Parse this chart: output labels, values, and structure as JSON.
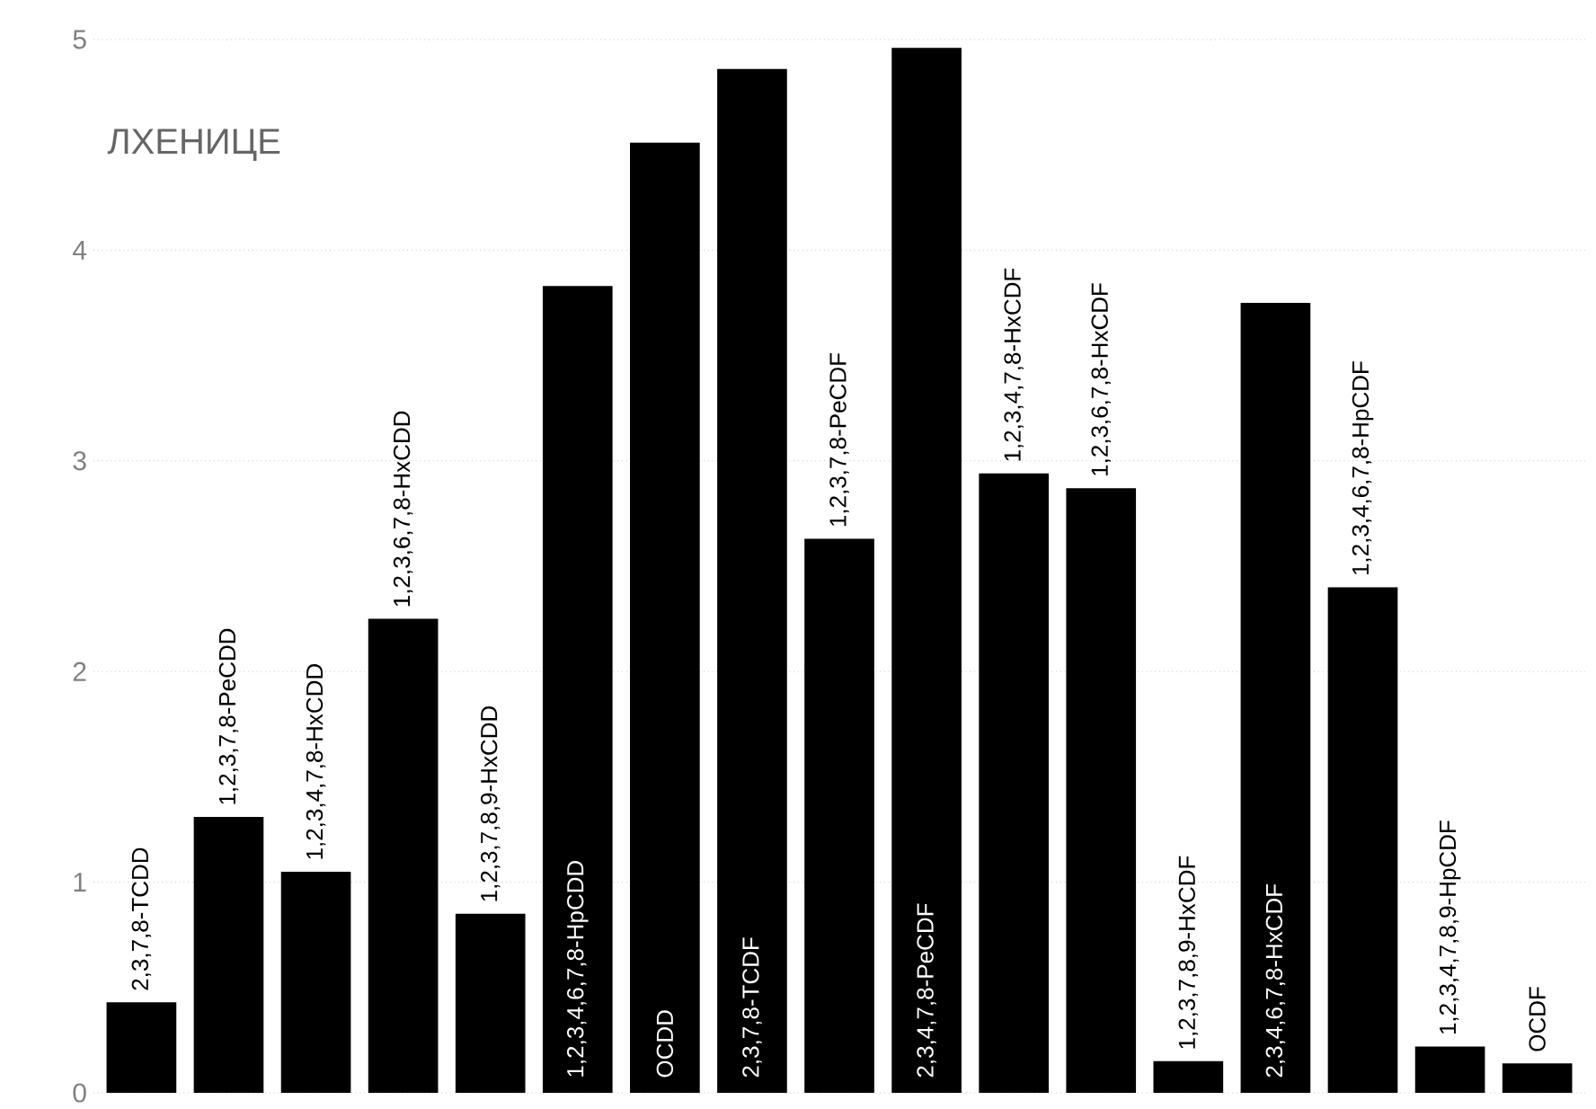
{
  "chart_data": {
    "type": "bar",
    "title": "ЛХЕНИЦЕ",
    "categories": [
      "2,3,7,8-TCDD",
      "1,2,3,7,8-PeCDD",
      "1,2,3,4,7,8-HxCDD",
      "1,2,3,6,7,8-HxCDD",
      "1,2,3,7,8,9-HxCDD",
      "1,2,3,4,6,7,8-HpCDD",
      "OCDD",
      "2,3,7,8-TCDF",
      "1,2,3,7,8-PeCDF",
      "2,3,4,7,8-PeCDF",
      "1,2,3,4,7,8-HxCDF",
      "1,2,3,6,7,8-HxCDF",
      "1,2,3,7,8,9-HxCDF",
      "2,3,4,6,7,8-HxCDF",
      "1,2,3,4,6,7,8-HpCDF",
      "1,2,3,4,7,8,9-HpCDF",
      "OCDF"
    ],
    "values": [
      0.43,
      1.31,
      1.05,
      2.25,
      0.85,
      3.83,
      4.51,
      4.86,
      2.63,
      4.96,
      2.94,
      2.87,
      0.15,
      3.75,
      2.4,
      0.22,
      0.14
    ],
    "color": "#000000",
    "ylim": [
      0,
      5
    ],
    "yticks": [
      0,
      1,
      2,
      3,
      4,
      5
    ],
    "grid": "y"
  }
}
